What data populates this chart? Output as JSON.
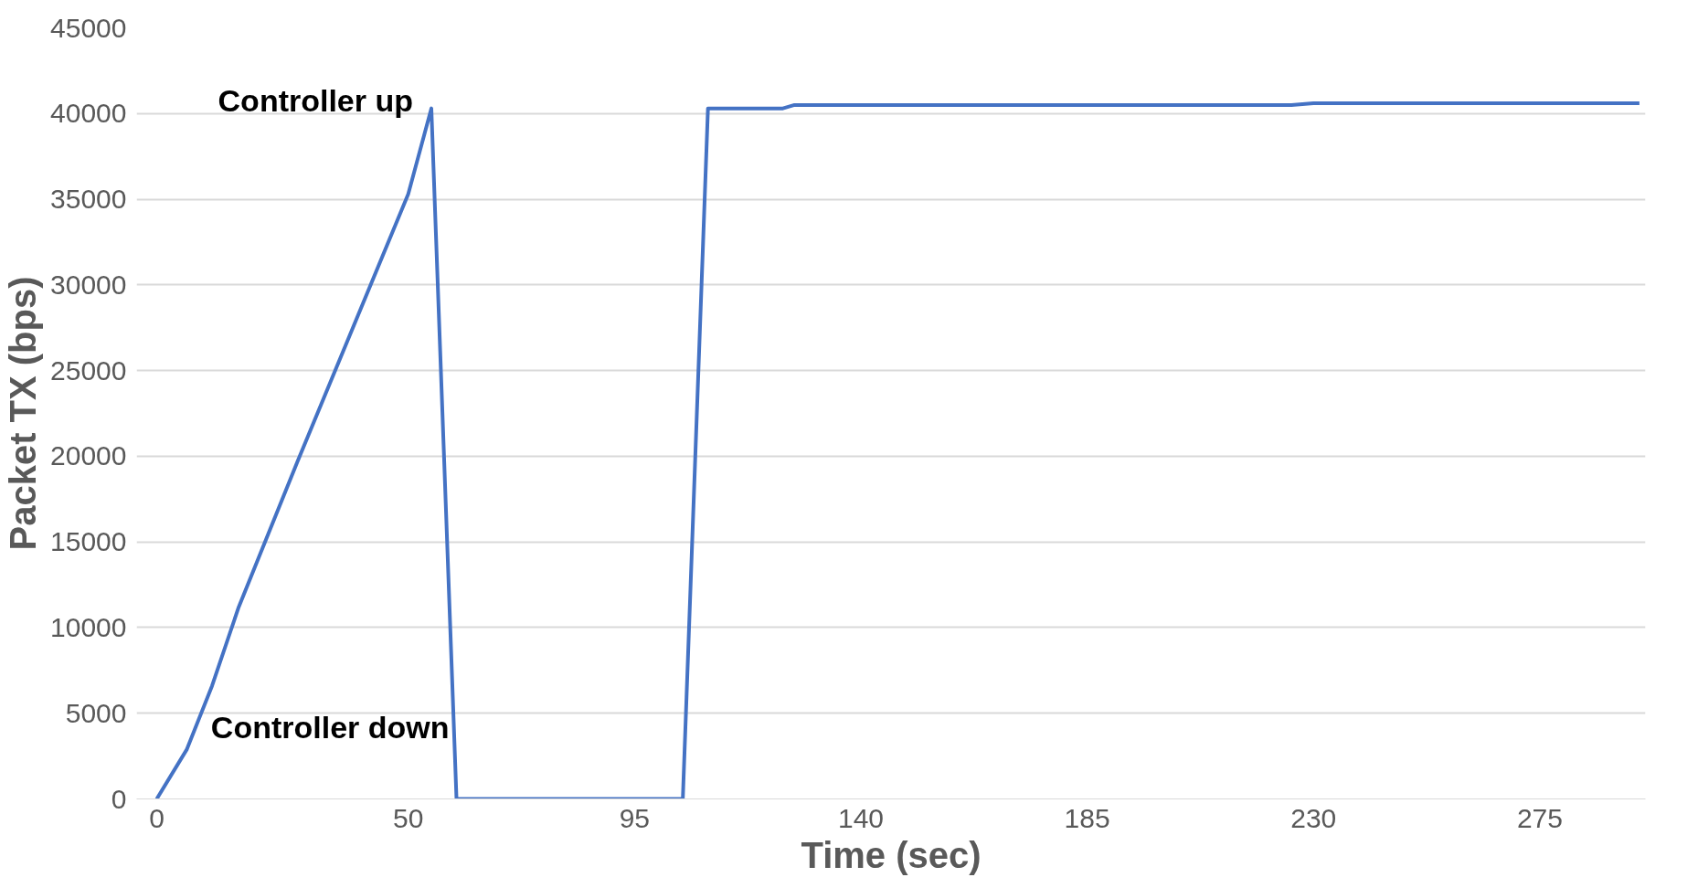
{
  "chart_data": {
    "type": "line",
    "xlabel": "Time (sec)",
    "ylabel": "Packet TX (bps)",
    "x": [
      0,
      6,
      11,
      16.3,
      28,
      39,
      50,
      54.6,
      59.6,
      104.6,
      109.6,
      124.5,
      126.8,
      225.6,
      230,
      294.8
    ],
    "series": [
      {
        "color": "#4472c4",
        "values": [
          0,
          2900,
          6600,
          11200,
          19700,
          27500,
          35300,
          40300,
          0,
          0,
          40300,
          40300,
          40500,
          40500,
          40600,
          40600
        ]
      }
    ],
    "xlim": [
      -4,
      296
    ],
    "xticks": [
      0,
      50,
      95,
      140,
      185,
      230,
      275
    ],
    "ylim": [
      0,
      45000
    ],
    "yticks": [
      0,
      5000,
      10000,
      15000,
      20000,
      25000,
      30000,
      35000,
      40000,
      45000
    ],
    "grid": "y",
    "marker": "none",
    "line_style": "solid",
    "annotations": [
      {
        "text": "Controller up",
        "x": 54.6,
        "y": 40300
      },
      {
        "text": "Controller down",
        "x": 59.6,
        "y": 0
      }
    ]
  }
}
